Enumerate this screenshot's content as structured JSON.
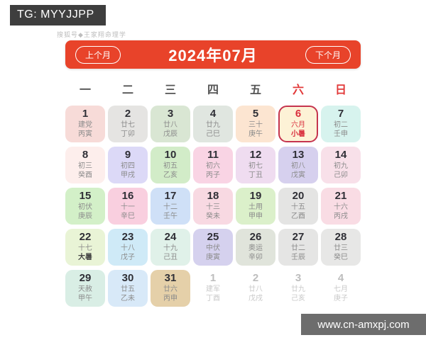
{
  "badges": {
    "tg_label": "TG: MYYJJPP",
    "watermark_top": "搜狐号◆王家翔命理学",
    "watermark_bottom": "www.cn-amxpj.com"
  },
  "header": {
    "prev_label": "上个月",
    "title": "2024年07月",
    "next_label": "下个月",
    "bar_color": "#e8432a"
  },
  "calendar": {
    "weekdays": [
      {
        "label": "一",
        "red": false
      },
      {
        "label": "二",
        "red": false
      },
      {
        "label": "三",
        "red": false
      },
      {
        "label": "四",
        "red": false
      },
      {
        "label": "五",
        "red": false
      },
      {
        "label": "六",
        "red": true
      },
      {
        "label": "日",
        "red": true
      }
    ],
    "highlight_border_color": "#c5344e",
    "days": [
      {
        "num": "1",
        "line1": "建党",
        "line2": "丙寅",
        "bg": "#f7dbd8"
      },
      {
        "num": "2",
        "line1": "廿七",
        "line2": "丁卯",
        "bg": "#e5e4e2"
      },
      {
        "num": "3",
        "line1": "廿八",
        "line2": "戊辰",
        "bg": "#d9e6d3"
      },
      {
        "num": "4",
        "line1": "廿九",
        "line2": "己巳",
        "bg": "#e0e6e0"
      },
      {
        "num": "5",
        "line1": "三十",
        "line2": "庚午",
        "bg": "#fce5d1"
      },
      {
        "num": "6",
        "line1": "六月",
        "line2": "小暑",
        "bg": "#fdf2d6",
        "highlight": true,
        "line2_bold": true
      },
      {
        "num": "7",
        "line1": "初二",
        "line2": "壬申",
        "bg": "#d7f3ee"
      },
      {
        "num": "8",
        "line1": "初三",
        "line2": "癸酉",
        "bg": "#fdeeec"
      },
      {
        "num": "9",
        "line1": "初四",
        "line2": "甲戌",
        "bg": "#dcd9f7"
      },
      {
        "num": "10",
        "line1": "初五",
        "line2": "乙亥",
        "bg": "#d2ecc8"
      },
      {
        "num": "11",
        "line1": "初六",
        "line2": "丙子",
        "bg": "#f9d4e4"
      },
      {
        "num": "12",
        "line1": "初七",
        "line2": "丁丑",
        "bg": "#efdcf0"
      },
      {
        "num": "13",
        "line1": "初八",
        "line2": "戊寅",
        "bg": "#d6d0ee"
      },
      {
        "num": "14",
        "line1": "初九",
        "line2": "己卯",
        "bg": "#f8e0e9"
      },
      {
        "num": "15",
        "line1": "初伏",
        "line2": "庚辰",
        "bg": "#d3f0c8"
      },
      {
        "num": "16",
        "line1": "十一",
        "line2": "辛巳",
        "bg": "#f9cfdf"
      },
      {
        "num": "17",
        "line1": "十二",
        "line2": "壬午",
        "bg": "#cfe0f7"
      },
      {
        "num": "18",
        "line1": "十三",
        "line2": "癸未",
        "bg": "#f8d9e2"
      },
      {
        "num": "19",
        "line1": "土用",
        "line2": "甲申",
        "bg": "#dbf0ca"
      },
      {
        "num": "20",
        "line1": "十五",
        "line2": "乙酉",
        "bg": "#e4e4e3"
      },
      {
        "num": "21",
        "line1": "十六",
        "line2": "丙戌",
        "bg": "#f9dce4"
      },
      {
        "num": "22",
        "line1": "十七",
        "line2": "大暑",
        "bg": "#e9f4d6",
        "line2_bold": true
      },
      {
        "num": "23",
        "line1": "十八",
        "line2": "戊子",
        "bg": "#cfeaf7"
      },
      {
        "num": "24",
        "line1": "十九",
        "line2": "己丑",
        "bg": "#e0f1e9"
      },
      {
        "num": "25",
        "line1": "中伏",
        "line2": "庚寅",
        "bg": "#d5d1ee"
      },
      {
        "num": "26",
        "line1": "奥运",
        "line2": "辛卯",
        "bg": "#e0e4db"
      },
      {
        "num": "27",
        "line1": "廿二",
        "line2": "壬辰",
        "bg": "#e5e5e4"
      },
      {
        "num": "28",
        "line1": "廿三",
        "line2": "癸巳",
        "bg": "#e7e7e6"
      },
      {
        "num": "29",
        "line1": "天赦",
        "line2": "甲午",
        "bg": "#d9eee5"
      },
      {
        "num": "30",
        "line1": "廿五",
        "line2": "乙未",
        "bg": "#d8e9f8"
      },
      {
        "num": "31",
        "line1": "廿六",
        "line2": "丙申",
        "bg": "#e5d0a9"
      },
      {
        "num": "1",
        "line1": "建军",
        "line2": "丁酉",
        "bg": "",
        "muted": true
      },
      {
        "num": "2",
        "line1": "廿八",
        "line2": "戊戌",
        "bg": "",
        "muted": true
      },
      {
        "num": "3",
        "line1": "廿九",
        "line2": "己亥",
        "bg": "",
        "muted": true
      },
      {
        "num": "4",
        "line1": "七月",
        "line2": "庚子",
        "bg": "",
        "muted": true
      }
    ]
  }
}
